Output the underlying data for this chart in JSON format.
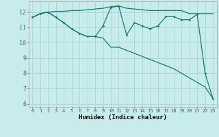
{
  "title": "",
  "xlabel": "Humidex (Indice chaleur)",
  "line_color": "#1a7a6e",
  "bg_color": "#c8ecec",
  "grid_color": "#a8d8d8",
  "grid_minor_color": "#b8e4e4",
  "xlim": [
    -0.5,
    23.5
  ],
  "ylim": [
    5.8,
    12.7
  ],
  "yticks": [
    6,
    7,
    8,
    9,
    10,
    11,
    12
  ],
  "xticks": [
    0,
    1,
    2,
    3,
    4,
    5,
    6,
    7,
    8,
    9,
    10,
    11,
    12,
    13,
    14,
    15,
    16,
    17,
    18,
    19,
    20,
    21,
    22,
    23
  ],
  "line1_x": [
    0,
    1,
    2,
    3,
    4,
    5,
    6,
    7,
    8,
    9,
    10,
    11,
    12,
    13,
    14,
    15,
    16,
    17,
    18,
    19,
    20,
    21,
    22,
    23
  ],
  "line1_y": [
    11.65,
    11.9,
    12.0,
    12.05,
    12.05,
    12.1,
    12.1,
    12.15,
    12.2,
    12.25,
    12.35,
    12.4,
    12.25,
    12.2,
    12.15,
    12.1,
    12.1,
    12.1,
    12.1,
    12.1,
    11.9,
    11.9,
    11.9,
    11.9
  ],
  "line2_x": [
    0,
    1,
    2,
    3,
    4,
    5,
    6,
    7,
    8,
    9,
    10,
    11,
    12,
    13,
    14,
    15,
    16,
    17,
    18,
    19,
    20,
    21,
    22,
    23
  ],
  "line2_y": [
    11.65,
    11.9,
    12.0,
    11.65,
    11.3,
    10.9,
    10.6,
    10.4,
    10.4,
    11.1,
    12.3,
    12.4,
    10.5,
    11.3,
    11.1,
    10.9,
    11.1,
    11.7,
    11.7,
    11.5,
    11.5,
    11.85,
    8.0,
    6.35
  ],
  "line3_x": [
    0,
    1,
    2,
    3,
    4,
    5,
    6,
    7,
    8,
    9,
    10,
    11,
    12,
    13,
    14,
    15,
    16,
    17,
    18,
    19,
    20,
    21,
    22,
    23
  ],
  "line3_y": [
    11.65,
    11.9,
    12.0,
    11.65,
    11.3,
    10.9,
    10.6,
    10.4,
    10.4,
    10.3,
    9.7,
    9.7,
    9.5,
    9.3,
    9.1,
    8.9,
    8.7,
    8.5,
    8.3,
    8.0,
    7.7,
    7.4,
    7.1,
    6.35
  ]
}
